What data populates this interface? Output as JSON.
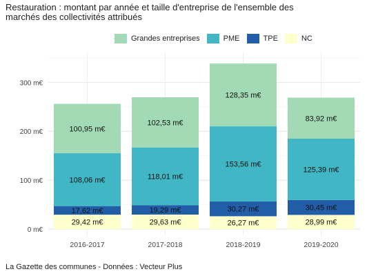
{
  "title": "Restauration : montant par année et taille d'entreprise de l'ensemble des marchés des collectivités attribués",
  "source": "La Gazette des communes - Données : Vecteur Plus",
  "chart_data": {
    "type": "bar",
    "stacked": true,
    "categories": [
      "2016-2017",
      "2017-2018",
      "2018-2019",
      "2019-2020"
    ],
    "series": [
      {
        "name": "NC",
        "color": "#FFFFCC",
        "values": [
          29.42,
          29.63,
          26.27,
          28.99
        ],
        "labels": [
          "29,42 m€",
          "29,63 m€",
          "26,27 m€",
          "28,99 m€"
        ]
      },
      {
        "name": "TPE",
        "color": "#225EA8",
        "values": [
          17.62,
          19.29,
          30.27,
          30.45
        ],
        "labels": [
          "17,62 m€",
          "19,29 m€",
          "30,27 m€",
          "30,45 m€"
        ]
      },
      {
        "name": "PME",
        "color": "#41B6C4",
        "values": [
          108.06,
          118.01,
          153.56,
          125.39
        ],
        "labels": [
          "108,06 m€",
          "118,01 m€",
          "153,56 m€",
          "125,39 m€"
        ]
      },
      {
        "name": "Grandes entreprises",
        "color": "#A1DAB4",
        "values": [
          100.95,
          102.53,
          128.35,
          83.92
        ],
        "labels": [
          "100,95 m€",
          "102,53 m€",
          "128,35 m€",
          "83,92 m€"
        ]
      }
    ],
    "legend_order": [
      "Grandes entreprises",
      "PME",
      "TPE",
      "NC"
    ],
    "legend_position": "top",
    "yticks": [
      0,
      100,
      200,
      300
    ],
    "ytick_labels": [
      "0 m€",
      "100 m€",
      "200 m€",
      "300 m€"
    ],
    "ylim": [
      0,
      350
    ],
    "xlabel": "",
    "ylabel": "",
    "grid": true
  }
}
